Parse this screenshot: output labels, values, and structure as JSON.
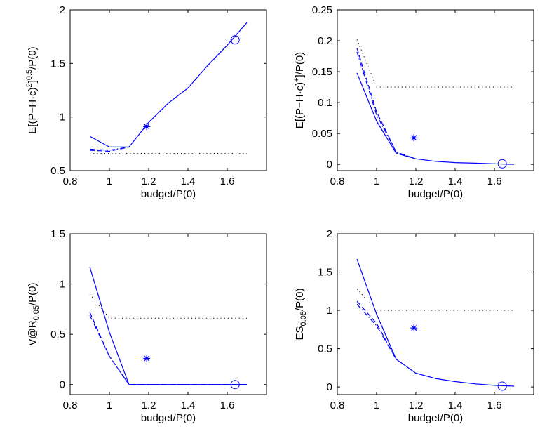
{
  "chart_data": [
    {
      "type": "line",
      "xlabel": "budget/P(0)",
      "ylabel_parts": [
        "E[(P−H·c)",
        "2",
        "]",
        "0.5",
        "/P(0)"
      ],
      "xlim": [
        0.8,
        1.8
      ],
      "ylim": [
        0.5,
        2.0
      ],
      "xticks": [
        "0.8",
        "1",
        "1.2",
        "1.4",
        "1.6"
      ],
      "yticks": [
        "0.5",
        "1",
        "1.5",
        "2"
      ],
      "series": [
        {
          "style": "solid",
          "x": [
            0.9,
            1.0,
            1.1,
            1.2,
            1.3,
            1.4,
            1.5,
            1.6,
            1.7
          ],
          "y": [
            0.82,
            0.72,
            0.72,
            0.95,
            1.13,
            1.27,
            1.48,
            1.67,
            1.88
          ]
        },
        {
          "style": "dashed",
          "x": [
            0.9,
            1.0,
            1.1
          ],
          "y": [
            0.69,
            0.68,
            0.72
          ]
        },
        {
          "style": "dashdot",
          "x": [
            0.9,
            1.0,
            1.1
          ],
          "y": [
            0.7,
            0.69,
            0.72
          ]
        },
        {
          "style": "dotted",
          "x": [
            0.9,
            1.0,
            1.7
          ],
          "y": [
            0.66,
            0.66,
            0.66
          ]
        }
      ],
      "markers": [
        {
          "symbol": "asterisk",
          "x": 1.19,
          "y": 0.91
        },
        {
          "symbol": "circle",
          "x": 1.64,
          "y": 1.72
        }
      ]
    },
    {
      "type": "line",
      "xlabel": "budget/P(0)",
      "ylabel_parts": [
        "E[(P−H·c)",
        "+",
        "]/P(0)"
      ],
      "xlim": [
        0.8,
        1.8
      ],
      "ylim": [
        -0.01,
        0.25
      ],
      "xticks": [
        "0.8",
        "1",
        "1.2",
        "1.4",
        "1.6"
      ],
      "yticks": [
        "0",
        "0.05",
        "0.1",
        "0.15",
        "0.2",
        "0.25"
      ],
      "series": [
        {
          "style": "solid",
          "x": [
            0.9,
            1.0,
            1.1,
            1.2,
            1.3,
            1.4,
            1.5,
            1.6,
            1.7
          ],
          "y": [
            0.148,
            0.07,
            0.018,
            0.009,
            0.005,
            0.003,
            0.002,
            0.001,
            0.0
          ]
        },
        {
          "style": "dashed",
          "x": [
            0.9,
            1.0,
            1.1,
            1.2
          ],
          "y": [
            0.188,
            0.085,
            0.02,
            0.009
          ]
        },
        {
          "style": "dashdot",
          "x": [
            0.9,
            1.0,
            1.1,
            1.2
          ],
          "y": [
            0.182,
            0.08,
            0.02,
            0.009
          ]
        },
        {
          "style": "dotted",
          "x": [
            0.9,
            1.0,
            1.7
          ],
          "y": [
            0.202,
            0.125,
            0.125
          ]
        }
      ],
      "markers": [
        {
          "symbol": "asterisk",
          "x": 1.19,
          "y": 0.043
        },
        {
          "symbol": "circle",
          "x": 1.64,
          "y": 0.001
        }
      ]
    },
    {
      "type": "line",
      "xlabel": "budget/P(0)",
      "ylabel_parts": [
        "V@R",
        "0.05",
        "/P(0)"
      ],
      "xlim": [
        0.8,
        1.8
      ],
      "ylim": [
        -0.1,
        1.5
      ],
      "xticks": [
        "0.8",
        "1",
        "1.2",
        "1.4",
        "1.6"
      ],
      "yticks": [
        "0",
        "0.5",
        "1",
        "1.5"
      ],
      "series": [
        {
          "style": "solid",
          "x": [
            0.9,
            1.0,
            1.1,
            1.7
          ],
          "y": [
            1.17,
            0.52,
            0.0,
            0.0
          ]
        },
        {
          "style": "dashed",
          "x": [
            0.9,
            1.0,
            1.1,
            1.7
          ],
          "y": [
            0.72,
            0.28,
            0.0,
            0.0
          ]
        },
        {
          "style": "dashdot",
          "x": [
            0.9,
            1.0,
            1.1,
            1.7
          ],
          "y": [
            0.69,
            0.28,
            0.0,
            0.0
          ]
        },
        {
          "style": "dotted",
          "x": [
            0.9,
            1.0,
            1.7
          ],
          "y": [
            0.9,
            0.66,
            0.66
          ]
        }
      ],
      "markers": [
        {
          "symbol": "asterisk",
          "x": 1.19,
          "y": 0.26
        },
        {
          "symbol": "circle",
          "x": 1.64,
          "y": 0.0
        }
      ]
    },
    {
      "type": "line",
      "xlabel": "budget/P(0)",
      "ylabel_parts": [
        "ES",
        "0.05",
        "/P(0)"
      ],
      "xlim": [
        0.8,
        1.8
      ],
      "ylim": [
        -0.1,
        2.0
      ],
      "xticks": [
        "0.8",
        "1",
        "1.2",
        "1.4",
        "1.6"
      ],
      "yticks": [
        "0",
        "0.5",
        "1",
        "1.5",
        "2"
      ],
      "series": [
        {
          "style": "solid",
          "x": [
            0.9,
            1.0,
            1.1,
            1.2,
            1.3,
            1.4,
            1.5,
            1.6,
            1.7
          ],
          "y": [
            1.67,
            0.95,
            0.36,
            0.18,
            0.11,
            0.07,
            0.04,
            0.02,
            0.01
          ]
        },
        {
          "style": "dashed",
          "x": [
            0.9,
            1.0,
            1.1
          ],
          "y": [
            1.12,
            0.83,
            0.36
          ]
        },
        {
          "style": "dashdot",
          "x": [
            0.9,
            1.0,
            1.1
          ],
          "y": [
            1.08,
            0.8,
            0.36
          ]
        },
        {
          "style": "dotted",
          "x": [
            0.9,
            1.0,
            1.7
          ],
          "y": [
            1.28,
            1.0,
            1.0
          ]
        }
      ],
      "markers": [
        {
          "symbol": "asterisk",
          "x": 1.19,
          "y": 0.77
        },
        {
          "symbol": "circle",
          "x": 1.64,
          "y": 0.01
        }
      ]
    }
  ],
  "colors": {
    "line": "#0000ff",
    "reference": "#000000",
    "axis": "#000000"
  }
}
